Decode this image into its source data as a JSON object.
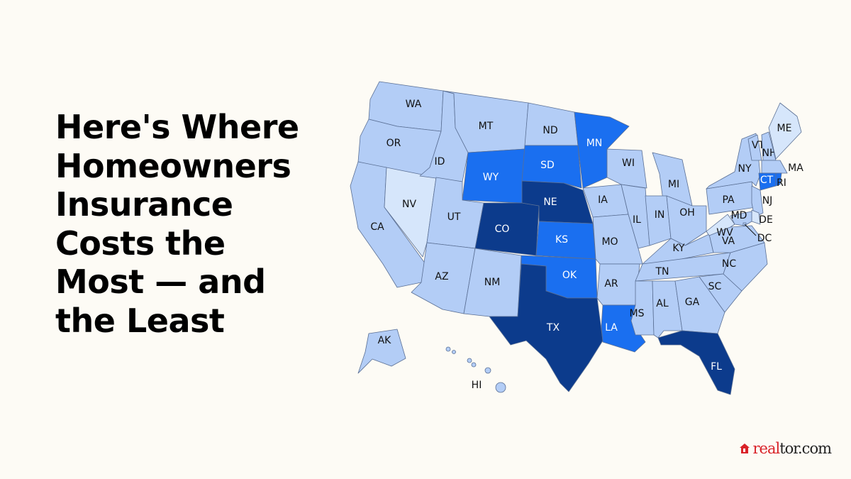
{
  "title_lines": [
    "Here's Where",
    "Homeowners",
    "Insurance",
    "Costs the",
    "Most — and",
    "the Least"
  ],
  "colors": {
    "lowest": "#d6e6fb",
    "typical": "#b3cdf6",
    "high": "#1a6ff0",
    "highest": "#0c3b8c",
    "background": "#fdfbf5",
    "brand_red": "#d92228"
  },
  "states": [
    {
      "code": "WA",
      "tier": "typical"
    },
    {
      "code": "OR",
      "tier": "typical"
    },
    {
      "code": "CA",
      "tier": "typical"
    },
    {
      "code": "NV",
      "tier": "lowest"
    },
    {
      "code": "ID",
      "tier": "typical"
    },
    {
      "code": "MT",
      "tier": "typical"
    },
    {
      "code": "WY",
      "tier": "high"
    },
    {
      "code": "UT",
      "tier": "typical"
    },
    {
      "code": "CO",
      "tier": "highest"
    },
    {
      "code": "AZ",
      "tier": "typical"
    },
    {
      "code": "NM",
      "tier": "typical"
    },
    {
      "code": "ND",
      "tier": "typical"
    },
    {
      "code": "SD",
      "tier": "high"
    },
    {
      "code": "NE",
      "tier": "highest"
    },
    {
      "code": "KS",
      "tier": "high"
    },
    {
      "code": "OK",
      "tier": "high"
    },
    {
      "code": "TX",
      "tier": "highest"
    },
    {
      "code": "MN",
      "tier": "high"
    },
    {
      "code": "IA",
      "tier": "typical"
    },
    {
      "code": "MO",
      "tier": "typical"
    },
    {
      "code": "AR",
      "tier": "typical"
    },
    {
      "code": "LA",
      "tier": "high"
    },
    {
      "code": "WI",
      "tier": "typical"
    },
    {
      "code": "IL",
      "tier": "typical"
    },
    {
      "code": "MI",
      "tier": "typical"
    },
    {
      "code": "IN",
      "tier": "typical"
    },
    {
      "code": "OH",
      "tier": "typical"
    },
    {
      "code": "KY",
      "tier": "typical"
    },
    {
      "code": "TN",
      "tier": "typical"
    },
    {
      "code": "MS",
      "tier": "typical"
    },
    {
      "code": "AL",
      "tier": "typical"
    },
    {
      "code": "GA",
      "tier": "typical"
    },
    {
      "code": "FL",
      "tier": "highest"
    },
    {
      "code": "SC",
      "tier": "typical"
    },
    {
      "code": "NC",
      "tier": "typical"
    },
    {
      "code": "VA",
      "tier": "typical"
    },
    {
      "code": "WV",
      "tier": "lowest"
    },
    {
      "code": "PA",
      "tier": "typical"
    },
    {
      "code": "NY",
      "tier": "typical"
    },
    {
      "code": "VT",
      "tier": "typical"
    },
    {
      "code": "NH",
      "tier": "typical"
    },
    {
      "code": "ME",
      "tier": "lowest"
    },
    {
      "code": "MA",
      "tier": "typical"
    },
    {
      "code": "CT",
      "tier": "high"
    },
    {
      "code": "RI",
      "tier": "high"
    },
    {
      "code": "NJ",
      "tier": "typical"
    },
    {
      "code": "DE",
      "tier": "lowest"
    },
    {
      "code": "MD",
      "tier": "typical"
    },
    {
      "code": "DC",
      "tier": "typical"
    },
    {
      "code": "AK",
      "tier": "typical"
    },
    {
      "code": "HI",
      "tier": "typical"
    }
  ],
  "logo": {
    "part1": "real",
    "part2": "tor.com"
  }
}
